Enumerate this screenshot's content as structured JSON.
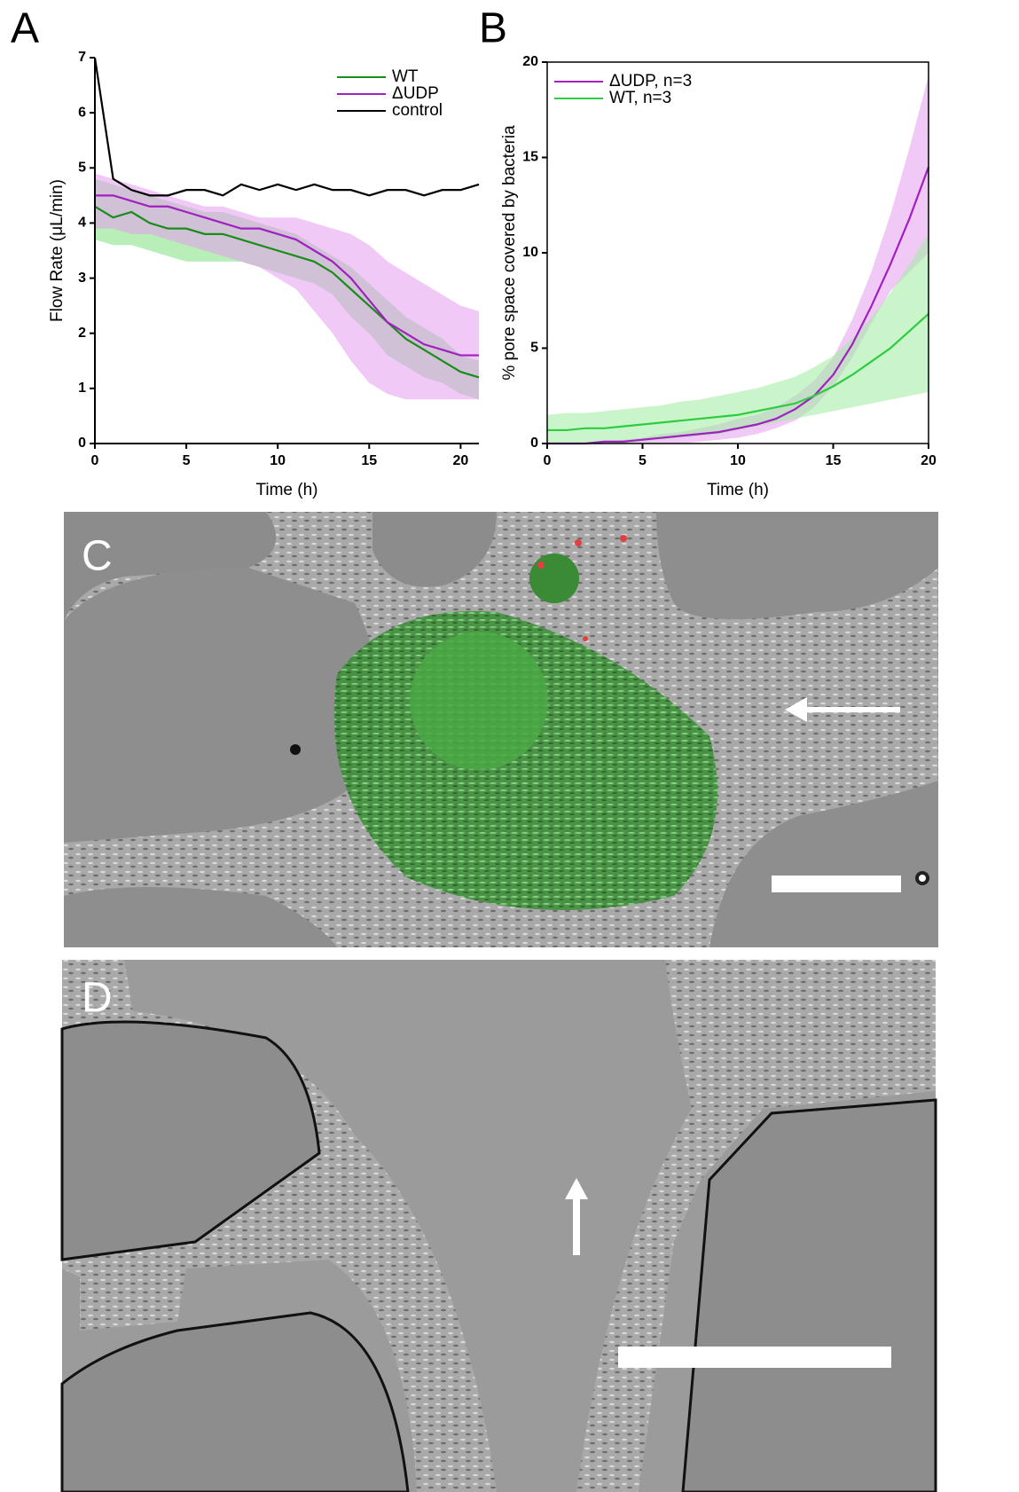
{
  "chart_data": [
    {
      "type": "line",
      "panel_label": "A",
      "xlabel": "Time (h)",
      "ylabel": "Flow Rate (μL/min)",
      "x": [
        0,
        1,
        2,
        3,
        4,
        5,
        6,
        7,
        8,
        9,
        10,
        11,
        12,
        13,
        14,
        15,
        16,
        17,
        18,
        19,
        20,
        21
      ],
      "xlim": [
        0,
        21
      ],
      "ylim": [
        0,
        7
      ],
      "xticks": [
        0,
        5,
        10,
        15,
        20
      ],
      "yticks": [
        0,
        1,
        2,
        3,
        4,
        5,
        6,
        7
      ],
      "legend": "upper right",
      "series": [
        {
          "name": "WT",
          "color": "#1a8c1a",
          "band_color": "#7ee07e",
          "values": [
            4.3,
            4.1,
            4.2,
            4.0,
            3.9,
            3.9,
            3.8,
            3.8,
            3.7,
            3.6,
            3.5,
            3.4,
            3.3,
            3.1,
            2.8,
            2.5,
            2.2,
            1.9,
            1.7,
            1.5,
            1.3,
            1.2
          ],
          "lower": [
            3.7,
            3.6,
            3.6,
            3.5,
            3.4,
            3.3,
            3.3,
            3.3,
            3.3,
            3.2,
            3.1,
            3.0,
            2.9,
            2.7,
            2.3,
            2.0,
            1.6,
            1.4,
            1.2,
            1.1,
            0.9,
            0.8
          ],
          "upper": [
            4.8,
            4.7,
            4.6,
            4.5,
            4.4,
            4.3,
            4.2,
            4.2,
            4.1,
            4.0,
            3.9,
            3.8,
            3.6,
            3.4,
            3.2,
            2.9,
            2.6,
            2.3,
            2.1,
            1.9,
            1.6,
            1.5
          ]
        },
        {
          "name": "ΔUDP",
          "color": "#a020c0",
          "band_color": "#e59cf0",
          "values": [
            4.5,
            4.5,
            4.4,
            4.3,
            4.3,
            4.2,
            4.1,
            4.0,
            3.9,
            3.9,
            3.8,
            3.7,
            3.5,
            3.3,
            3.0,
            2.6,
            2.2,
            2.0,
            1.8,
            1.7,
            1.6,
            1.6
          ],
          "lower": [
            3.9,
            3.9,
            3.8,
            3.8,
            3.7,
            3.6,
            3.5,
            3.4,
            3.3,
            3.2,
            3.0,
            2.8,
            2.4,
            2.0,
            1.5,
            1.1,
            0.9,
            0.8,
            0.8,
            0.8,
            0.8,
            0.8
          ],
          "upper": [
            4.9,
            4.8,
            4.7,
            4.6,
            4.5,
            4.4,
            4.3,
            4.3,
            4.2,
            4.1,
            4.1,
            4.1,
            4.0,
            3.9,
            3.8,
            3.6,
            3.3,
            3.1,
            2.9,
            2.7,
            2.5,
            2.4
          ]
        },
        {
          "name": "control",
          "color": "#000000",
          "values": [
            7,
            4.8,
            4.6,
            4.5,
            4.5,
            4.6,
            4.6,
            4.5,
            4.7,
            4.6,
            4.7,
            4.6,
            4.7,
            4.6,
            4.6,
            4.5,
            4.6,
            4.6,
            4.5,
            4.6,
            4.6,
            4.7
          ]
        }
      ]
    },
    {
      "type": "line",
      "panel_label": "B",
      "xlabel": "Time (h)",
      "ylabel": "% pore space covered by bacteria",
      "x": [
        0,
        1,
        2,
        3,
        4,
        5,
        6,
        7,
        8,
        9,
        10,
        11,
        12,
        13,
        14,
        15,
        16,
        17,
        18,
        19,
        20
      ],
      "xlim": [
        0,
        20
      ],
      "ylim": [
        0,
        20
      ],
      "xticks": [
        0,
        5,
        10,
        15,
        20
      ],
      "yticks": [
        0,
        5,
        10,
        15,
        20
      ],
      "legend": "upper left",
      "series": [
        {
          "name": "ΔUDP, n=3",
          "color": "#a020c0",
          "band_color": "#e59cf0",
          "values": [
            0,
            0,
            0,
            0.1,
            0.1,
            0.2,
            0.3,
            0.4,
            0.5,
            0.6,
            0.8,
            1.0,
            1.3,
            1.8,
            2.5,
            3.6,
            5.2,
            7.2,
            9.4,
            11.8,
            14.5
          ],
          "lower": [
            0,
            0,
            0,
            0,
            0,
            0,
            0,
            0,
            0.1,
            0.2,
            0.3,
            0.5,
            0.8,
            1.2,
            1.9,
            3.0,
            4.5,
            6.3,
            8.0,
            9.0,
            10.0
          ],
          "upper": [
            0,
            0,
            0,
            0.1,
            0.2,
            0.3,
            0.5,
            0.6,
            0.8,
            1.0,
            1.3,
            1.5,
            1.9,
            2.5,
            3.3,
            4.5,
            6.5,
            9.0,
            12,
            15.5,
            19.3
          ]
        },
        {
          "name": "WT, n=3",
          "color": "#2ecc40",
          "band_color": "#9eec9e",
          "values": [
            0.7,
            0.7,
            0.8,
            0.8,
            0.9,
            1.0,
            1.1,
            1.2,
            1.3,
            1.4,
            1.5,
            1.7,
            1.9,
            2.1,
            2.5,
            3.0,
            3.6,
            4.3,
            5.0,
            5.9,
            6.8
          ],
          "lower": [
            0,
            0,
            0,
            0,
            0,
            0.1,
            0.2,
            0.3,
            0.4,
            0.5,
            0.7,
            0.9,
            1.1,
            1.3,
            1.5,
            1.7,
            1.9,
            2.1,
            2.3,
            2.5,
            2.7
          ],
          "upper": [
            1.5,
            1.6,
            1.6,
            1.7,
            1.8,
            1.9,
            2.0,
            2.2,
            2.3,
            2.5,
            2.7,
            2.9,
            3.2,
            3.5,
            4.0,
            4.6,
            5.5,
            6.6,
            7.9,
            9.4,
            11.0
          ]
        }
      ]
    }
  ],
  "panels": [
    {
      "label": "C"
    },
    {
      "label": "D"
    }
  ]
}
